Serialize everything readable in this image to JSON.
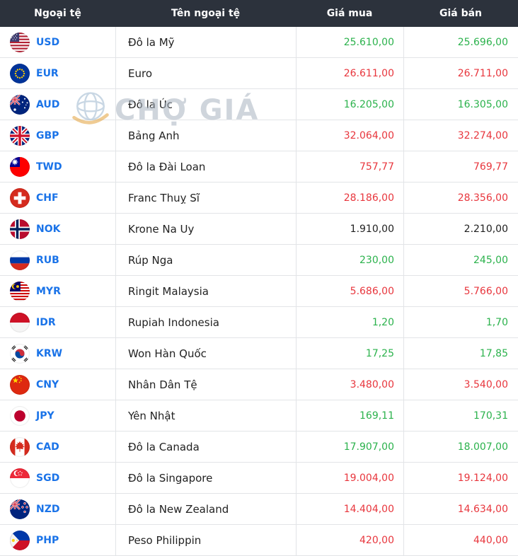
{
  "header": {
    "currency": "Ngoại tệ",
    "name": "Tên ngoại tệ",
    "buy": "Giá mua",
    "sell": "Giá bán"
  },
  "watermark": {
    "text": "CHỢ GIÁ",
    "icon": "globe-logo-icon"
  },
  "colors": {
    "up": "#2bb24c",
    "down": "#e8363d",
    "neutral": "#1f1f1f",
    "code_blue": "#1a73e8",
    "header_bg": "#2c323c",
    "header_text": "#ffffff",
    "row_border": "#e2e4e7"
  },
  "rows": [
    {
      "code": "USD",
      "flag_icon": "us-flag-icon",
      "name": "Đô la Mỹ",
      "buy": "25.610,00",
      "sell": "25.696,00",
      "trend": "up"
    },
    {
      "code": "EUR",
      "flag_icon": "eu-flag-icon",
      "name": "Euro",
      "buy": "26.611,00",
      "sell": "26.711,00",
      "trend": "down"
    },
    {
      "code": "AUD",
      "flag_icon": "australia-flag-icon",
      "name": "Đô la Úc",
      "buy": "16.205,00",
      "sell": "16.305,00",
      "trend": "up"
    },
    {
      "code": "GBP",
      "flag_icon": "uk-flag-icon",
      "name": "Bảng Anh",
      "buy": "32.064,00",
      "sell": "32.274,00",
      "trend": "down"
    },
    {
      "code": "TWD",
      "flag_icon": "taiwan-flag-icon",
      "name": "Đô la Đài Loan",
      "buy": "757,77",
      "sell": "769,77",
      "trend": "down"
    },
    {
      "code": "CHF",
      "flag_icon": "switzerland-flag-icon",
      "name": "Franc Thuỵ Sĩ",
      "buy": "28.186,00",
      "sell": "28.356,00",
      "trend": "down"
    },
    {
      "code": "NOK",
      "flag_icon": "norway-flag-icon",
      "name": "Krone Na Uy",
      "buy": "1.910,00",
      "sell": "2.210,00",
      "trend": "neutral"
    },
    {
      "code": "RUB",
      "flag_icon": "russia-flag-icon",
      "name": "Rúp Nga",
      "buy": "230,00",
      "sell": "245,00",
      "trend": "up"
    },
    {
      "code": "MYR",
      "flag_icon": "malaysia-flag-icon",
      "name": "Ringit Malaysia",
      "buy": "5.686,00",
      "sell": "5.766,00",
      "trend": "down"
    },
    {
      "code": "IDR",
      "flag_icon": "indonesia-flag-icon",
      "name": "Rupiah Indonesia",
      "buy": "1,20",
      "sell": "1,70",
      "trend": "up"
    },
    {
      "code": "KRW",
      "flag_icon": "south-korea-flag-icon",
      "name": "Won Hàn Quốc",
      "buy": "17,25",
      "sell": "17,85",
      "trend": "up"
    },
    {
      "code": "CNY",
      "flag_icon": "china-flag-icon",
      "name": "Nhân Dân Tệ",
      "buy": "3.480,00",
      "sell": "3.540,00",
      "trend": "down"
    },
    {
      "code": "JPY",
      "flag_icon": "japan-flag-icon",
      "name": "Yên Nhật",
      "buy": "169,11",
      "sell": "170,31",
      "trend": "up"
    },
    {
      "code": "CAD",
      "flag_icon": "canada-flag-icon",
      "name": "Đô la Canada",
      "buy": "17.907,00",
      "sell": "18.007,00",
      "trend": "up"
    },
    {
      "code": "SGD",
      "flag_icon": "singapore-flag-icon",
      "name": "Đô la Singapore",
      "buy": "19.004,00",
      "sell": "19.124,00",
      "trend": "down"
    },
    {
      "code": "NZD",
      "flag_icon": "new-zealand-flag-icon",
      "name": "Đô la New Zealand",
      "buy": "14.404,00",
      "sell": "14.634,00",
      "trend": "down"
    },
    {
      "code": "PHP",
      "flag_icon": "philippines-flag-icon",
      "name": "Peso Philippin",
      "buy": "420,00",
      "sell": "440,00",
      "trend": "down"
    }
  ]
}
